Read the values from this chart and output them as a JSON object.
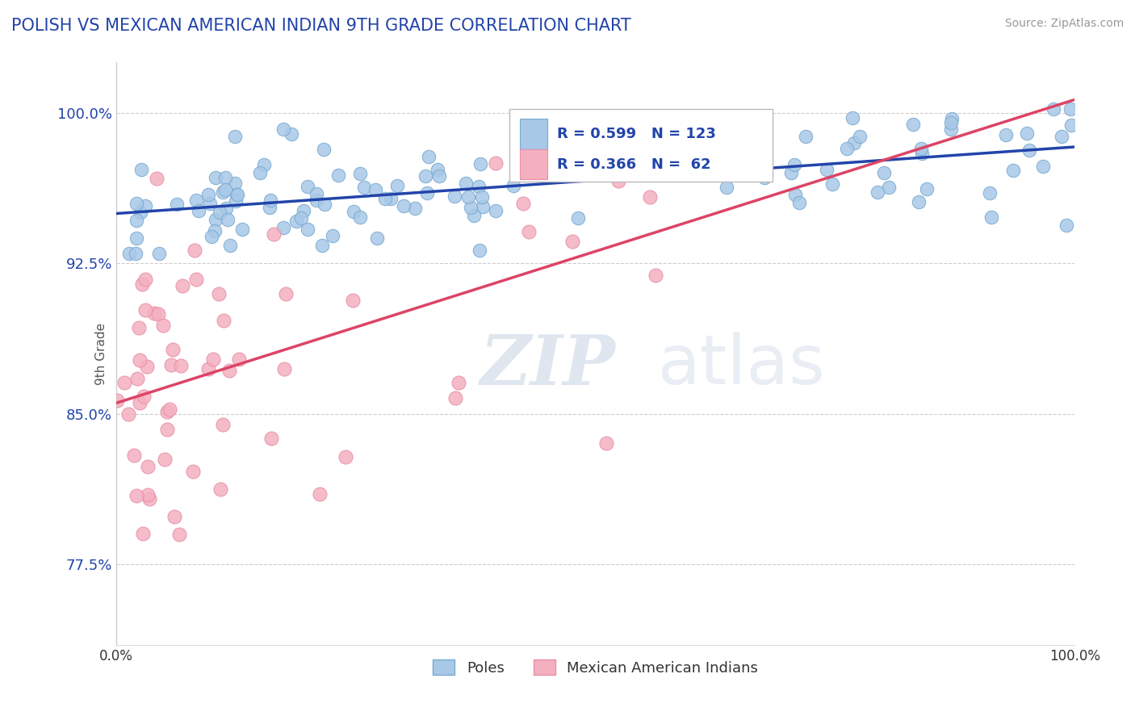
{
  "title": "POLISH VS MEXICAN AMERICAN INDIAN 9TH GRADE CORRELATION CHART",
  "source": "Source: ZipAtlas.com",
  "ylabel": "9th Grade",
  "ytick_vals": [
    0.775,
    0.85,
    0.925,
    1.0
  ],
  "ytick_labels": [
    "77.5%",
    "85.0%",
    "92.5%",
    "100.0%"
  ],
  "xmin": 0.0,
  "xmax": 1.0,
  "ymin": 0.735,
  "ymax": 1.025,
  "blue_R": 0.599,
  "blue_N": 123,
  "pink_R": 0.366,
  "pink_N": 62,
  "blue_color": "#a8c8e8",
  "pink_color": "#f4b0c0",
  "blue_edge_color": "#7aaad0",
  "pink_edge_color": "#e890a8",
  "blue_line_color": "#2244aa",
  "pink_line_color": "#dd4466",
  "legend_labels": [
    "Poles",
    "Mexican American Indians"
  ],
  "watermark_zip": "ZIP",
  "watermark_atlas": "atlas",
  "background_color": "#ffffff",
  "grid_color": "#cccccc",
  "title_color": "#2244aa",
  "source_color": "#999999",
  "axis_color": "#cccccc"
}
